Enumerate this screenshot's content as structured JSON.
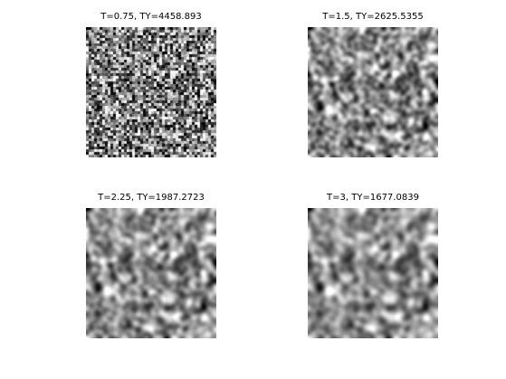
{
  "figure": {
    "panels": [
      {
        "title": "T=0.75, TY=4458.893",
        "t": 0.75,
        "tv": 4458.893
      },
      {
        "title": "T=1.5, TY=2625.5355",
        "t": 1.5,
        "tv": 2625.5355
      },
      {
        "title": "T=2.25, TY=1987.2723",
        "t": 2.25,
        "tv": 1987.2723
      },
      {
        "title": "T=3, TY=1677.0839",
        "t": 3,
        "tv": 1677.0839
      }
    ],
    "colormap": "grayscale"
  }
}
